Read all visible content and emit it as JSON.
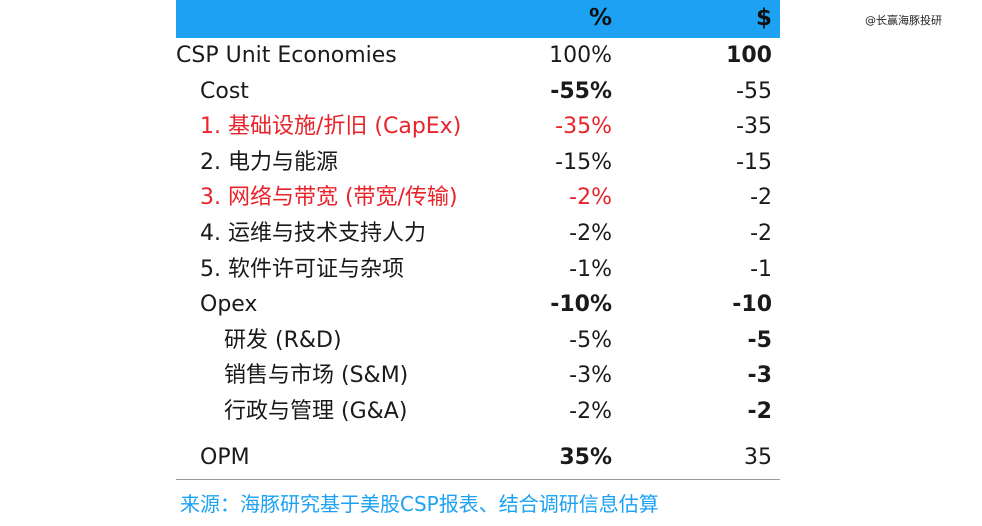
{
  "watermark": "@长赢海豚投研",
  "header": {
    "pct": "%",
    "usd": "$"
  },
  "rows": [
    {
      "label": "CSP Unit Economies",
      "pct": "100%",
      "usd": "100"
    },
    {
      "label": "Cost",
      "pct": "-55%",
      "usd": "-55"
    },
    {
      "label": "1. 基础设施/折旧 (CapEx)",
      "pct": "-35%",
      "usd": "-35"
    },
    {
      "label": "2. 电力与能源",
      "pct": "-15%",
      "usd": "-15"
    },
    {
      "label": "3. 网络与带宽 (带宽/传输)",
      "pct": "-2%",
      "usd": "-2"
    },
    {
      "label": "4. 运维与技术支持人力",
      "pct": "-2%",
      "usd": "-2"
    },
    {
      "label": "5. 软件许可证与杂项",
      "pct": "-1%",
      "usd": "-1"
    },
    {
      "label": "Opex",
      "pct": "-10%",
      "usd": "-10"
    },
    {
      "label": "研发 (R&D)",
      "pct": "-5%",
      "usd": "-5"
    },
    {
      "label": "销售与市场 (S&M)",
      "pct": "-3%",
      "usd": "-3"
    },
    {
      "label": "行政与管理 (G&A)",
      "pct": "-2%",
      "usd": "-2"
    },
    {
      "label": "OPM",
      "pct": "35%",
      "usd": "35"
    }
  ],
  "source": "来源：海豚研究基于美股CSP报表、结合调研信息估算",
  "colors": {
    "header_bg": "#1da1f2",
    "highlight": "#e8242b",
    "source": "#1da1f2"
  }
}
